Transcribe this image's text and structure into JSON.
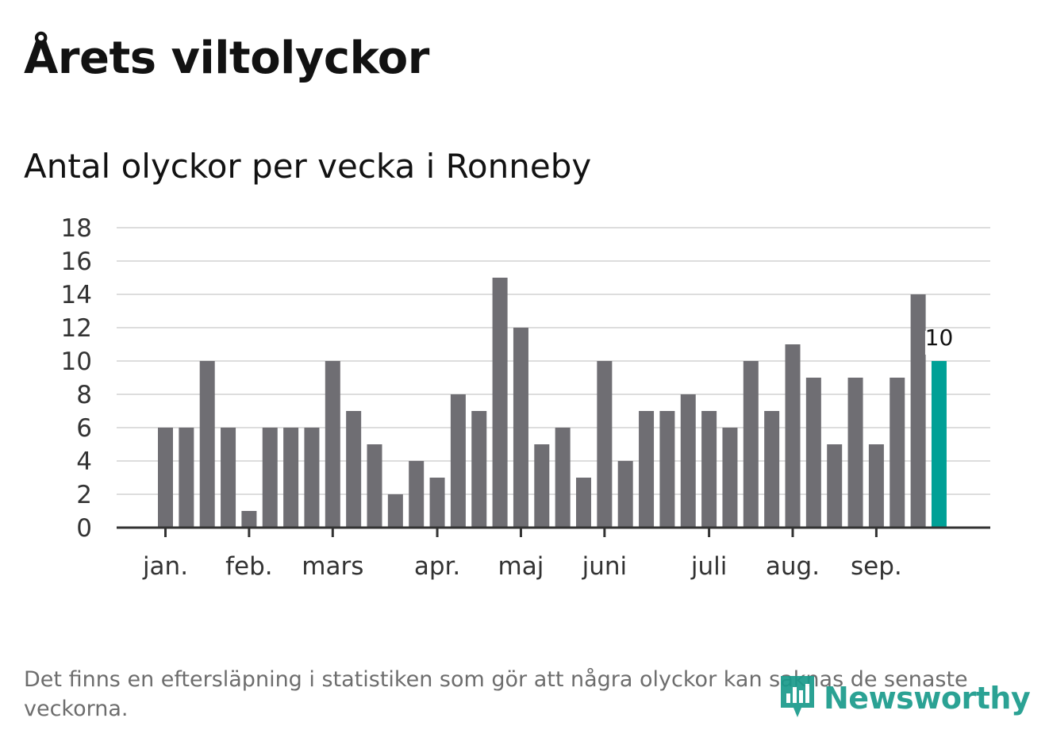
{
  "title": "Årets viltolyckor",
  "subtitle": "Antal olyckor per vecka i Ronneby",
  "footnote": "Det finns en eftersläpning i statistiken som gör att några olyckor kan saknas de senaste veckorna.",
  "logo": {
    "text": "Newsworthy",
    "icon": "newsworthy-logo-icon"
  },
  "colors": {
    "bar": "#6f6e73",
    "highlight": "#00a096",
    "grid": "#dddddd",
    "axis": "#333333"
  },
  "chart_data": {
    "type": "bar",
    "values": [
      6,
      6,
      10,
      6,
      1,
      6,
      6,
      6,
      10,
      7,
      5,
      2,
      4,
      3,
      8,
      7,
      15,
      12,
      5,
      6,
      3,
      10,
      4,
      7,
      7,
      8,
      7,
      6,
      10,
      7,
      11,
      9,
      5,
      9,
      5,
      9,
      14,
      10
    ],
    "highlight_index": 37,
    "highlight_label": "10",
    "ylim": [
      0,
      18
    ],
    "yticks": [
      "0",
      "2",
      "4",
      "6",
      "8",
      "10",
      "12",
      "14",
      "16",
      "18"
    ],
    "month_labels": [
      {
        "label": "jan.",
        "bar": 0
      },
      {
        "label": "feb.",
        "bar": 4
      },
      {
        "label": "mars",
        "bar": 8
      },
      {
        "label": "apr.",
        "bar": 13
      },
      {
        "label": "maj",
        "bar": 17
      },
      {
        "label": "juni",
        "bar": 21
      },
      {
        "label": "juli",
        "bar": 26
      },
      {
        "label": "aug.",
        "bar": 30
      },
      {
        "label": "sep.",
        "bar": 34
      }
    ],
    "grid": true,
    "legend": "none",
    "xlabel": "",
    "ylabel": ""
  }
}
